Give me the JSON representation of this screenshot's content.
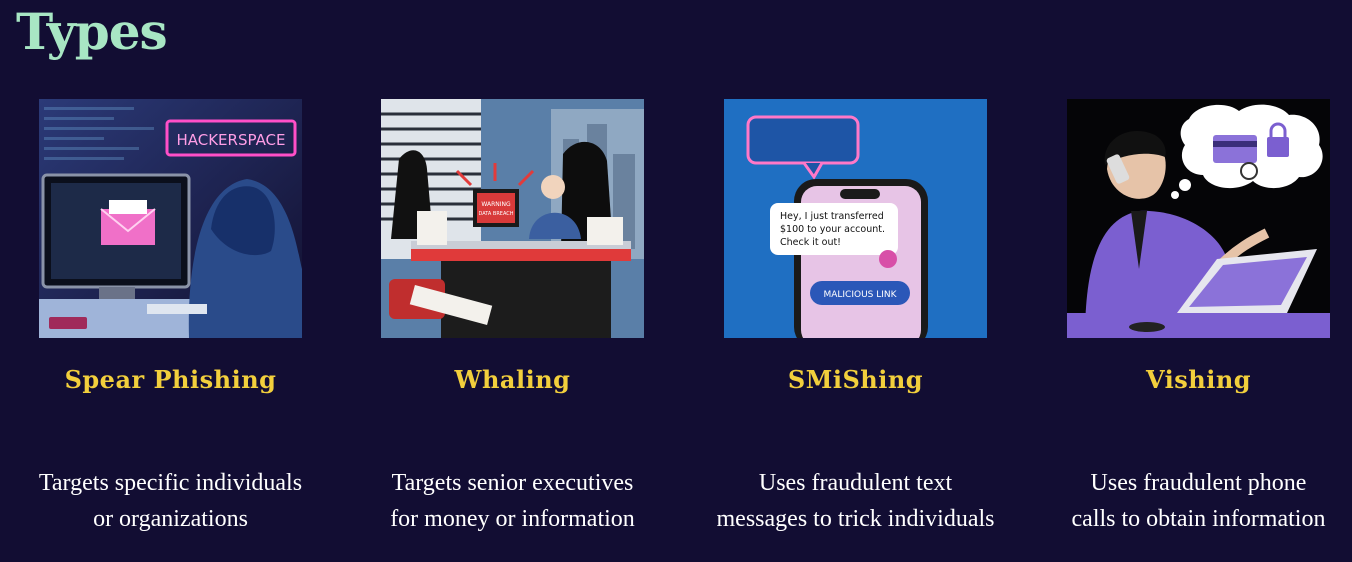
{
  "title": "Types",
  "cards": [
    {
      "name": "Spear Phishing",
      "desc": [
        "Targets specific individuals",
        "or organizations"
      ],
      "sign": "HACKERSPACE"
    },
    {
      "name": "Whaling",
      "desc": [
        "Targets senior executives",
        "for money or information"
      ],
      "screen_line1": "WARNING",
      "screen_line2": "DATA BREACH"
    },
    {
      "name": "SMiShing",
      "desc": [
        "Uses fraudulent text",
        "messages to trick individuals"
      ],
      "sms_line1": "Hey, I just transferred",
      "sms_line2": "$100 to your account.",
      "sms_line3": "Check it out!",
      "link": "MALICIOUS LINK"
    },
    {
      "name": "Vishing",
      "desc": [
        "Uses fraudulent phone",
        "calls to obtain information"
      ]
    }
  ]
}
